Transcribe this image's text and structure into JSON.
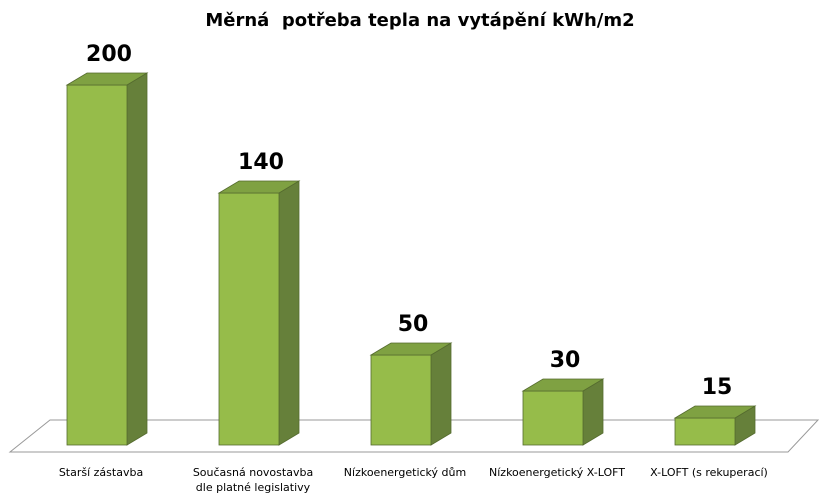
{
  "chart_data": {
    "type": "bar",
    "title": "Měrná  potřeba tepla na vytápění kWh/m2",
    "categories": [
      "Starší zástavba",
      "Současná novostavba dle platné legislativy",
      "Nízkoenergetický dům",
      "Nízkoenergetický X-LOFT",
      "X-LOFT (s rekuperací)"
    ],
    "category_lines": [
      [
        "Starší zástavba"
      ],
      [
        "Současná novostavba",
        "dle platné legislativy"
      ],
      [
        "Nízkoenergetický dům"
      ],
      [
        "Nízkoenergetický X-LOFT"
      ],
      [
        "X-LOFT (s rekuperací)"
      ]
    ],
    "values": [
      200,
      140,
      50,
      30,
      15
    ],
    "value_labels": [
      "200",
      "140",
      "50",
      "30",
      "15"
    ],
    "xlabel": "",
    "ylabel": "",
    "ylim": [
      0,
      200
    ],
    "grid": false,
    "legend": "none",
    "style": "3d-column",
    "colors": {
      "bar_front": "#96bc4a",
      "bar_side": "#66803a",
      "bar_top": "#7fa142",
      "bar_edge": "#556b2f",
      "floor_fill": "#ffffff",
      "floor_stroke": "#999999"
    }
  }
}
